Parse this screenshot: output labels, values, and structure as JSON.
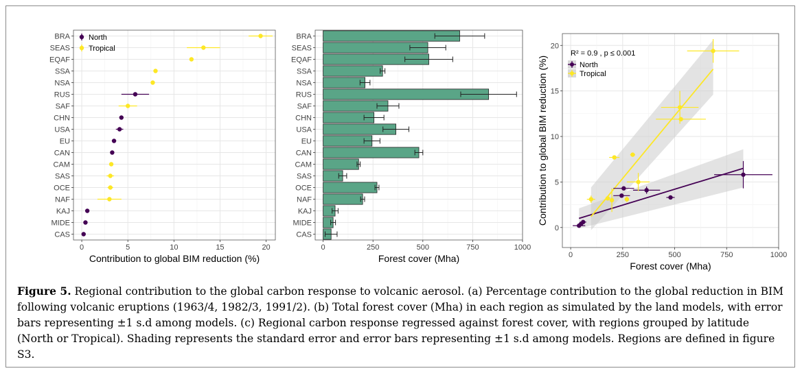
{
  "caption": {
    "label": "Figure 5.",
    "text": " Regional contribution to the global carbon response to volcanic aerosol. (a) Percentage contribution to the global reduction in BIM following volcanic eruptions (1963/4, 1982/3, 1991/2). (b) Total forest cover (Mha) in each region as simulated by the land models, with error bars representing ±1 s.d among models. (c) Regional carbon response regressed against forest cover, with regions grouped by latitude (North or Tropical). Shading represents the standard error and error bars representing ±1 s.d among models. Regions are defined in figure S3."
  },
  "colors": {
    "north": "#440154",
    "tropical": "#fde725",
    "bar": "#5aa587",
    "grid": "#e6e6e6",
    "ribbon": "#cccccc"
  },
  "chart_data": [
    {
      "type": "scatter",
      "panel": "a",
      "xlabel": "Contribution to global BIM reduction (%)",
      "ylabel": "",
      "xlim": [
        -0.9,
        21.0
      ],
      "xticks": [
        0,
        5,
        10,
        15,
        20
      ],
      "grid": true,
      "legend": {
        "placement": "top-left",
        "entries": [
          "North",
          "Tropical"
        ]
      },
      "categories": [
        "BRA",
        "SEAS",
        "EQAF",
        "SSA",
        "NSA",
        "RUS",
        "SAF",
        "CHN",
        "USA",
        "EU",
        "CAN",
        "CAM",
        "SAS",
        "OCE",
        "NAF",
        "KAJ",
        "MIDE",
        "CAS"
      ],
      "points": [
        {
          "region": "BRA",
          "group": "Tropical",
          "value": 19.4,
          "err": 1.3
        },
        {
          "region": "SEAS",
          "group": "Tropical",
          "value": 13.2,
          "err": 1.8
        },
        {
          "region": "EQAF",
          "group": "Tropical",
          "value": 11.9,
          "err": 0.2
        },
        {
          "region": "SSA",
          "group": "Tropical",
          "value": 8.0,
          "err": 0.1
        },
        {
          "region": "NSA",
          "group": "Tropical",
          "value": 7.7,
          "err": 0.1
        },
        {
          "region": "RUS",
          "group": "North",
          "value": 5.8,
          "err": 1.5
        },
        {
          "region": "SAF",
          "group": "Tropical",
          "value": 5.0,
          "err": 1.0
        },
        {
          "region": "CHN",
          "group": "North",
          "value": 4.3,
          "err": 0.1
        },
        {
          "region": "USA",
          "group": "North",
          "value": 4.1,
          "err": 0.4
        },
        {
          "region": "EU",
          "group": "North",
          "value": 3.5,
          "err": 0.1
        },
        {
          "region": "CAN",
          "group": "North",
          "value": 3.3,
          "err": 0.2
        },
        {
          "region": "CAM",
          "group": "Tropical",
          "value": 3.2,
          "err": 0.2
        },
        {
          "region": "SAS",
          "group": "Tropical",
          "value": 3.1,
          "err": 0.4
        },
        {
          "region": "OCE",
          "group": "Tropical",
          "value": 3.1,
          "err": 0.3
        },
        {
          "region": "NAF",
          "group": "Tropical",
          "value": 3.0,
          "err": 1.3
        },
        {
          "region": "KAJ",
          "group": "North",
          "value": 0.6,
          "err": 0.1
        },
        {
          "region": "MIDE",
          "group": "North",
          "value": 0.4,
          "err": 0.05
        },
        {
          "region": "CAS",
          "group": "North",
          "value": 0.2,
          "err": 0.05
        }
      ]
    },
    {
      "type": "bar",
      "panel": "b",
      "orientation": "horizontal",
      "xlabel": "Forest cover (Mha)",
      "ylabel": "",
      "xlim": [
        -40,
        1000
      ],
      "xticks": [
        0,
        250,
        500,
        750,
        1000
      ],
      "grid": true,
      "categories": [
        "BRA",
        "SEAS",
        "EQAF",
        "SSA",
        "NSA",
        "RUS",
        "SAF",
        "CHN",
        "USA",
        "EU",
        "CAN",
        "CAM",
        "SAS",
        "OCE",
        "NAF",
        "KAJ",
        "MIDE",
        "CAS"
      ],
      "values": [
        685,
        525,
        530,
        298,
        210,
        830,
        325,
        255,
        365,
        245,
        480,
        178,
        98,
        270,
        198,
        60,
        50,
        40
      ],
      "errors": [
        125,
        90,
        120,
        12,
        25,
        140,
        55,
        50,
        65,
        40,
        20,
        8,
        20,
        10,
        10,
        15,
        12,
        30
      ]
    },
    {
      "type": "scatter",
      "panel": "c",
      "xlabel": "Forest cover (Mha)",
      "ylabel": "Contribution to global BIM reduction (%)",
      "xlim": [
        -40,
        1000
      ],
      "ylim": [
        -2.2,
        21.3
      ],
      "xticks": [
        0,
        250,
        500,
        750,
        1000
      ],
      "yticks": [
        0,
        5,
        10,
        15,
        20
      ],
      "annotation": "R² = 0.9 , p ≤ 0.001",
      "legend": {
        "placement": "top-left",
        "entries": [
          "North",
          "Tropical"
        ]
      },
      "grid": true,
      "series": [
        {
          "name": "North",
          "points": [
            {
              "x": 830,
              "y": 5.8,
              "xerr": 140,
              "yerr": 1.5
            },
            {
              "x": 365,
              "y": 4.1,
              "xerr": 65,
              "yerr": 0.4
            },
            {
              "x": 255,
              "y": 4.3,
              "xerr": 50,
              "yerr": 0.1
            },
            {
              "x": 245,
              "y": 3.5,
              "xerr": 40,
              "yerr": 0.1
            },
            {
              "x": 480,
              "y": 3.3,
              "xerr": 20,
              "yerr": 0.2
            },
            {
              "x": 60,
              "y": 0.6,
              "xerr": 15,
              "yerr": 0.1
            },
            {
              "x": 50,
              "y": 0.4,
              "xerr": 12,
              "yerr": 0.05
            },
            {
              "x": 40,
              "y": 0.2,
              "xerr": 30,
              "yerr": 0.05
            }
          ],
          "fit": {
            "x": [
              40,
              830
            ],
            "y": [
              1.0,
              6.5
            ]
          },
          "band": {
            "x": [
              40,
              830
            ],
            "upper": [
              2.1,
              8.6
            ],
            "lower": [
              -0.1,
              4.4
            ]
          }
        },
        {
          "name": "Tropical",
          "points": [
            {
              "x": 685,
              "y": 19.4,
              "xerr": 125,
              "yerr": 1.3
            },
            {
              "x": 525,
              "y": 13.2,
              "xerr": 90,
              "yerr": 1.8
            },
            {
              "x": 530,
              "y": 11.9,
              "xerr": 120,
              "yerr": 0.2
            },
            {
              "x": 298,
              "y": 8.0,
              "xerr": 12,
              "yerr": 0.1
            },
            {
              "x": 210,
              "y": 7.7,
              "xerr": 25,
              "yerr": 0.1
            },
            {
              "x": 325,
              "y": 5.0,
              "xerr": 55,
              "yerr": 1.0
            },
            {
              "x": 178,
              "y": 3.2,
              "xerr": 8,
              "yerr": 0.2
            },
            {
              "x": 98,
              "y": 3.1,
              "xerr": 20,
              "yerr": 0.4
            },
            {
              "x": 270,
              "y": 3.1,
              "xerr": 10,
              "yerr": 0.3
            },
            {
              "x": 198,
              "y": 3.0,
              "xerr": 10,
              "yerr": 1.3
            }
          ],
          "fit": {
            "x": [
              98,
              685
            ],
            "y": [
              1.2,
              17.4
            ]
          },
          "band": {
            "x": [
              98,
              685
            ],
            "upper": [
              4.4,
              20.6
            ],
            "lower": [
              -0.3,
              14.6
            ]
          }
        }
      ]
    }
  ]
}
